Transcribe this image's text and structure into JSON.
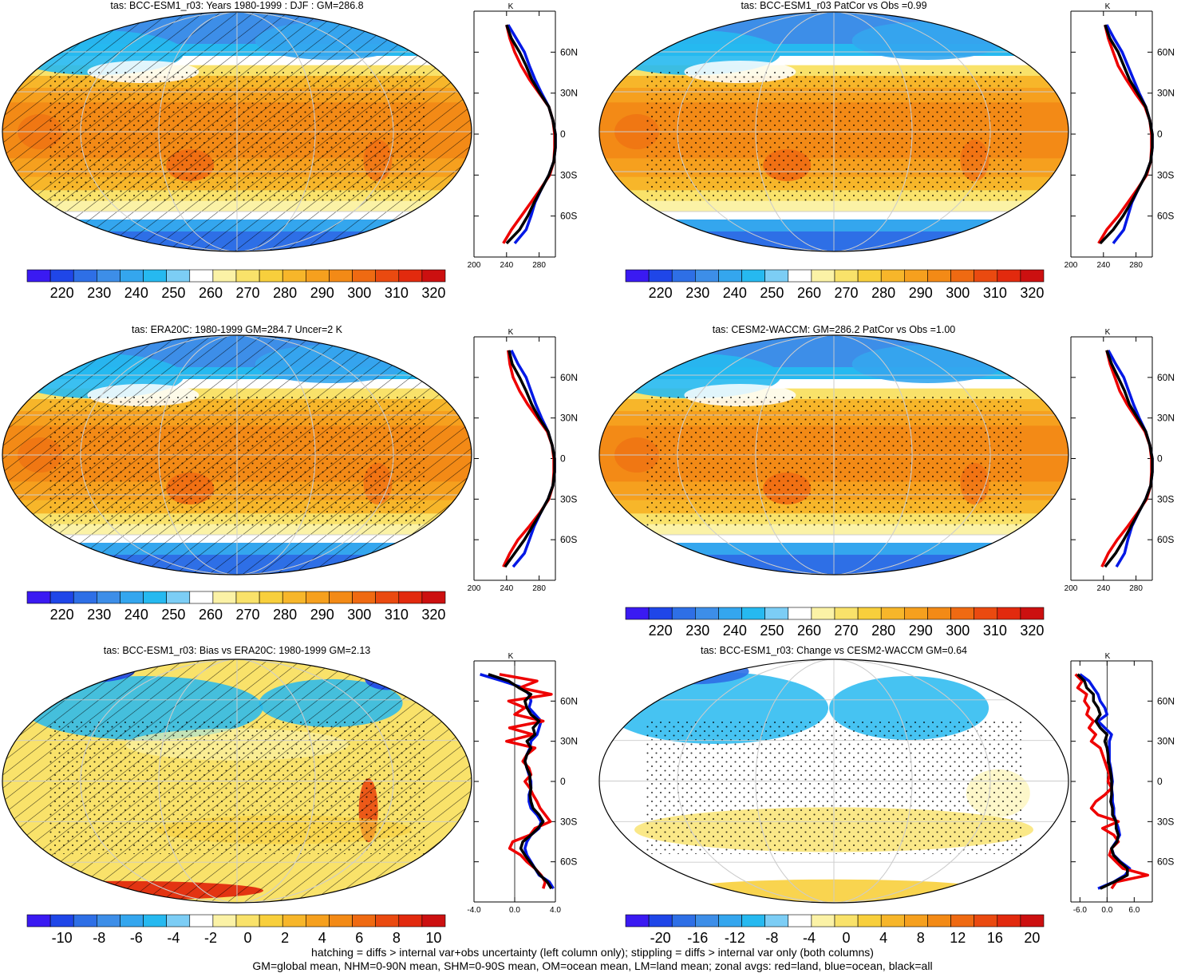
{
  "colors": {
    "temp_scale": [
      "#3a1af2",
      "#1f46e8",
      "#2e6fe6",
      "#3d8ee8",
      "#34a6ee",
      "#26b9f0",
      "#7ccdf5",
      "#ffffff",
      "#fbf2a6",
      "#f9e26a",
      "#f8cf3c",
      "#f7b62a",
      "#f6a01e",
      "#f38a16",
      "#ef6a12",
      "#ea4a10",
      "#e22a0e",
      "#cc1010"
    ],
    "zonal_land": "#ee0000",
    "zonal_ocean": "#0018e6",
    "zonal_all": "#000000",
    "grid": "#cccccc"
  },
  "caption": {
    "line1": "hatching = diffs > internal var+obs uncertainty (left column only); stippling = diffs > internal var only (both columns)",
    "line2": "GM=global mean, NHM=0-90N mean, SHM=0-90S mean, OM=ocean mean, LM=land mean; zonal avgs: red=land, blue=ocean, black=all"
  },
  "chart_data": [
    {
      "type": "heatmap",
      "title": "tas: BCC-ESM1_r03: Years 1980-1999 : DJF : GM=286.8",
      "colorbar_labels": [
        "220",
        "230",
        "240",
        "250",
        "260",
        "270",
        "280",
        "290",
        "300",
        "310",
        "320"
      ],
      "pattern": "abs",
      "hatched": true,
      "zonal": {
        "unit": "K",
        "xlim": [
          200,
          300
        ],
        "xticks": [
          "200",
          "240",
          "280"
        ],
        "yticks": [
          "60N",
          "30N",
          "0",
          "30S",
          "60S"
        ],
        "lat": [
          80,
          70,
          60,
          50,
          40,
          30,
          20,
          10,
          0,
          -10,
          -20,
          -30,
          -40,
          -50,
          -60,
          -70,
          -80
        ],
        "land": [
          240,
          244,
          250,
          258,
          268,
          280,
          292,
          297,
          299,
          299,
          298,
          293,
          282,
          270,
          258,
          246,
          236
        ],
        "ocean": [
          242,
          252,
          262,
          268,
          275,
          283,
          292,
          297,
          300,
          300,
          298,
          292,
          283,
          275,
          270,
          264,
          250
        ],
        "all": [
          240,
          246,
          256,
          264,
          271,
          281,
          292,
          297,
          300,
          300,
          298,
          292,
          283,
          274,
          266,
          256,
          240
        ]
      }
    },
    {
      "type": "heatmap",
      "title": "tas: BCC-ESM1_r03 PatCor vs Obs =0.99",
      "colorbar_labels": [
        "220",
        "230",
        "240",
        "250",
        "260",
        "270",
        "280",
        "290",
        "300",
        "310",
        "320"
      ],
      "pattern": "abs",
      "hatched": false,
      "zonal": {
        "unit": "K",
        "xlim": [
          200,
          300
        ],
        "xticks": [
          "200",
          "240",
          "280"
        ],
        "yticks": [
          "60N",
          "30N",
          "0",
          "30S",
          "60S"
        ],
        "lat": [
          80,
          70,
          60,
          50,
          40,
          30,
          20,
          10,
          0,
          -10,
          -20,
          -30,
          -40,
          -50,
          -60,
          -70,
          -80
        ],
        "land": [
          242,
          246,
          252,
          258,
          268,
          279,
          291,
          297,
          299,
          299,
          298,
          293,
          282,
          270,
          258,
          244,
          234
        ],
        "ocean": [
          244,
          253,
          263,
          270,
          277,
          284,
          292,
          297,
          300,
          300,
          298,
          292,
          283,
          275,
          270,
          265,
          252
        ],
        "all": [
          242,
          248,
          258,
          265,
          272,
          282,
          292,
          297,
          300,
          300,
          298,
          292,
          283,
          274,
          264,
          252,
          236
        ]
      }
    },
    {
      "type": "heatmap",
      "title": "tas: ERA20C: 1980-1999 GM=284.7 Uncer=2 K",
      "colorbar_labels": [
        "220",
        "230",
        "240",
        "250",
        "260",
        "270",
        "280",
        "290",
        "300",
        "310",
        "320"
      ],
      "pattern": "abs",
      "hatched": true,
      "zonal": {
        "unit": "K",
        "xlim": [
          200,
          300
        ],
        "xticks": [
          "200",
          "240",
          "280"
        ],
        "yticks": [
          "60N",
          "30N",
          "0",
          "30S",
          "60S"
        ],
        "lat": [
          80,
          70,
          60,
          50,
          40,
          30,
          20,
          10,
          0,
          -10,
          -20,
          -30,
          -40,
          -50,
          -60,
          -70,
          -80
        ],
        "land": [
          242,
          244,
          248,
          256,
          266,
          278,
          290,
          296,
          298,
          298,
          297,
          292,
          281,
          268,
          254,
          244,
          236
        ],
        "ocean": [
          246,
          254,
          264,
          270,
          276,
          283,
          291,
          296,
          299,
          299,
          297,
          291,
          282,
          274,
          268,
          262,
          248
        ],
        "all": [
          243,
          247,
          256,
          264,
          271,
          280,
          291,
          296,
          299,
          299,
          297,
          291,
          282,
          272,
          262,
          250,
          238
        ]
      }
    },
    {
      "type": "heatmap",
      "title": "tas: CESM2-WACCM: GM=286.2 PatCor vs Obs =1.00",
      "colorbar_labels": [
        "220",
        "230",
        "240",
        "250",
        "260",
        "270",
        "280",
        "290",
        "300",
        "310",
        "320"
      ],
      "pattern": "abs",
      "hatched": false,
      "zonal": {
        "unit": "K",
        "xlim": [
          200,
          300
        ],
        "xticks": [
          "200",
          "240",
          "280"
        ],
        "yticks": [
          "60N",
          "30N",
          "0",
          "30S",
          "60S"
        ],
        "lat": [
          80,
          70,
          60,
          50,
          40,
          30,
          20,
          10,
          0,
          -10,
          -20,
          -30,
          -40,
          -50,
          -60,
          -70,
          -80
        ],
        "land": [
          244,
          248,
          254,
          260,
          269,
          280,
          291,
          297,
          299,
          299,
          298,
          293,
          282,
          270,
          257,
          246,
          238
        ],
        "ocean": [
          246,
          255,
          265,
          271,
          277,
          284,
          292,
          297,
          300,
          300,
          298,
          292,
          283,
          275,
          270,
          266,
          256
        ],
        "all": [
          244,
          250,
          258,
          266,
          272,
          282,
          292,
          297,
          300,
          300,
          298,
          292,
          283,
          274,
          265,
          255,
          242
        ]
      }
    },
    {
      "type": "heatmap",
      "title": "tas: BCC-ESM1_r03: Bias vs ERA20C: 1980-1999 GM=2.13",
      "colorbar_labels": [
        "-10",
        "-8",
        "-6",
        "-4",
        "-2",
        "0",
        "2",
        "4",
        "6",
        "8",
        "10"
      ],
      "pattern": "bias",
      "hatched": true,
      "zonal": {
        "unit": "K",
        "xlim": [
          -4,
          4
        ],
        "xticks": [
          "-4.0",
          "0.0",
          "4.0"
        ],
        "yticks": [
          "60N",
          "30N",
          "0",
          "30S",
          "60S"
        ],
        "lat": [
          80,
          75,
          70,
          65,
          60,
          55,
          50,
          45,
          40,
          35,
          30,
          25,
          20,
          15,
          10,
          5,
          0,
          -5,
          -10,
          -15,
          -20,
          -25,
          -30,
          -35,
          -40,
          -45,
          -50,
          -55,
          -60,
          -65,
          -70,
          -75,
          -80
        ],
        "land": [
          -1.5,
          2.2,
          0.5,
          3.6,
          -0.6,
          1.0,
          0.0,
          2.8,
          -0.5,
          1.8,
          -0.8,
          2.0,
          1.2,
          0.8,
          1.4,
          1.6,
          1.0,
          1.5,
          1.8,
          2.2,
          2.5,
          3.0,
          3.5,
          2.0,
          1.5,
          -0.2,
          -0.5,
          0.6,
          1.2,
          2.0,
          2.6,
          3.0,
          2.8
        ],
        "ocean": [
          -3.4,
          -1.2,
          0.8,
          1.4,
          1.6,
          1.4,
          2.0,
          2.6,
          2.4,
          2.2,
          1.6,
          1.5,
          1.2,
          1.0,
          1.2,
          1.4,
          1.6,
          1.6,
          1.4,
          1.4,
          1.6,
          2.2,
          2.6,
          2.4,
          1.6,
          1.2,
          1.0,
          1.2,
          1.6,
          2.0,
          2.4,
          3.4,
          3.8
        ],
        "all": [
          -2.6,
          -0.6,
          0.4,
          1.6,
          1.0,
          1.2,
          1.6,
          2.4,
          1.8,
          2.0,
          1.2,
          1.6,
          1.2,
          1.0,
          1.2,
          1.5,
          1.5,
          1.6,
          1.5,
          1.6,
          1.8,
          2.4,
          2.8,
          2.3,
          1.6,
          0.8,
          0.6,
          1.0,
          1.5,
          2.0,
          2.5,
          3.2,
          3.6
        ]
      }
    },
    {
      "type": "heatmap",
      "title": "tas: BCC-ESM1_r03: Change vs CESM2-WACCM GM=0.64",
      "colorbar_labels": [
        "-20",
        "-16",
        "-12",
        "-8",
        "-4",
        "0",
        "4",
        "8",
        "12",
        "16",
        "20"
      ],
      "pattern": "change",
      "hatched": false,
      "zonal": {
        "unit": "K",
        "xlim": [
          -8,
          10
        ],
        "xticks": [
          "-6.0",
          "0.0",
          "6.0"
        ],
        "yticks": [
          "60N",
          "30N",
          "0",
          "30S",
          "60S"
        ],
        "lat": [
          80,
          75,
          70,
          65,
          60,
          55,
          50,
          45,
          40,
          35,
          30,
          25,
          20,
          15,
          10,
          5,
          0,
          -5,
          -10,
          -15,
          -20,
          -25,
          -30,
          -35,
          -40,
          -45,
          -50,
          -55,
          -60,
          -65,
          -70,
          -75,
          -80
        ],
        "land": [
          -7.0,
          -5.5,
          -6.5,
          -4.5,
          -5.0,
          -4.0,
          -4.5,
          -3.0,
          -4.0,
          -2.5,
          -3.5,
          -1.5,
          -1.0,
          -0.5,
          0.0,
          0.5,
          0.2,
          1.0,
          -0.5,
          -2.5,
          -3.5,
          -2.0,
          2.5,
          -1.0,
          1.5,
          2.5,
          1.0,
          0.5,
          2.0,
          3.5,
          9.0,
          2.0,
          1.0
        ],
        "ocean": [
          -6.0,
          -4.0,
          -3.0,
          -2.0,
          -1.5,
          -0.5,
          0.0,
          -2.0,
          -0.5,
          1.0,
          0.5,
          0.5,
          0.5,
          0.5,
          0.8,
          1.0,
          1.2,
          1.0,
          1.2,
          1.2,
          1.5,
          1.5,
          2.0,
          2.5,
          2.8,
          2.0,
          1.0,
          1.5,
          3.0,
          5.0,
          4.0,
          1.5,
          -2.0
        ],
        "all": [
          -6.5,
          -5.0,
          -4.5,
          -3.0,
          -3.0,
          -2.0,
          -1.5,
          -2.5,
          -1.5,
          0.0,
          -0.5,
          0.0,
          0.2,
          0.3,
          0.6,
          0.9,
          1.0,
          1.0,
          1.0,
          0.8,
          1.2,
          1.2,
          2.0,
          2.0,
          2.5,
          2.2,
          1.0,
          1.4,
          2.8,
          4.5,
          4.5,
          1.6,
          -1.5
        ]
      }
    }
  ]
}
